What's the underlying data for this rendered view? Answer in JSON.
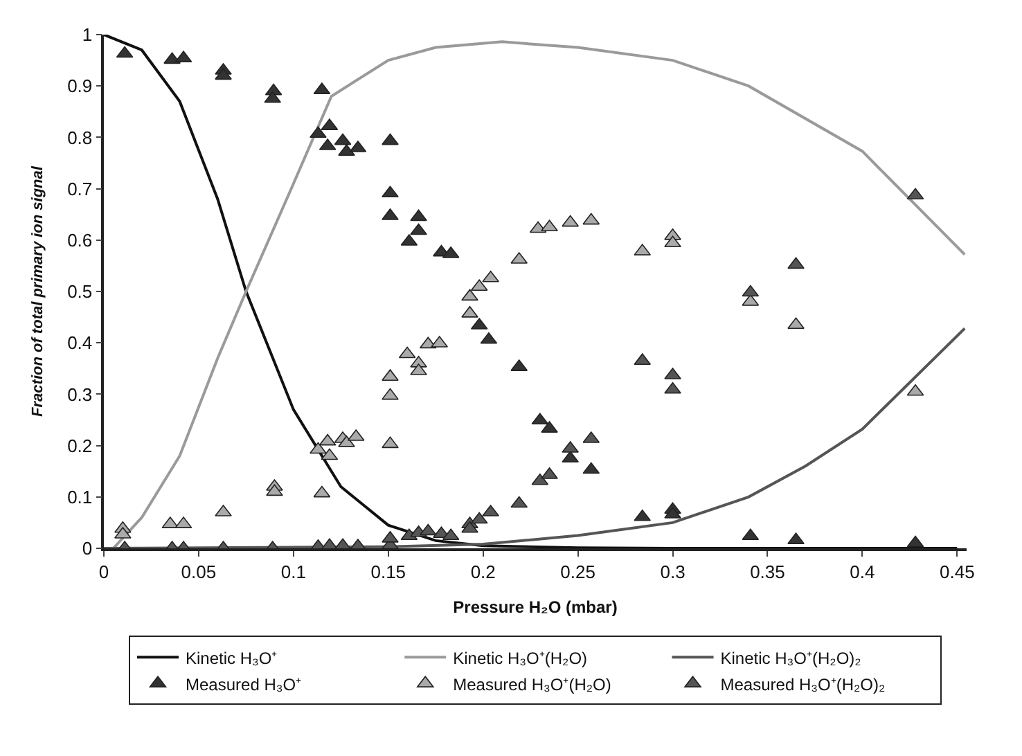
{
  "chart_data": {
    "type": "scatter",
    "xlabel": "Pressure H₂O (mbar)",
    "ylabel": "Fraction of total primary ion signal",
    "xlim": [
      0,
      0.455
    ],
    "ylim": [
      0,
      1
    ],
    "xticks": [
      0,
      0.05,
      0.1,
      0.15,
      0.2,
      0.25,
      0.3,
      0.35,
      0.4,
      0.45
    ],
    "yticks": [
      0,
      0.1,
      0.2,
      0.3,
      0.4,
      0.5,
      0.6,
      0.7,
      0.8,
      0.9,
      1
    ],
    "grid": false,
    "legend": "bottom",
    "series": [
      {
        "name": "Kinetic H₃O⁺",
        "type": "line",
        "marker": "none",
        "line_style": "solid",
        "color": "#111111",
        "x": [
          0,
          0.02,
          0.04,
          0.06,
          0.075,
          0.1,
          0.125,
          0.15,
          0.175,
          0.2,
          0.25,
          0.3,
          0.45
        ],
        "values": [
          1,
          0.97,
          0.87,
          0.68,
          0.5,
          0.27,
          0.12,
          0.045,
          0.015,
          0.005,
          0.001,
          0,
          0
        ]
      },
      {
        "name": "Kinetic H₃O⁺(H₂O)",
        "type": "line",
        "marker": "none",
        "line_style": "solid",
        "color": "#9a9a9a",
        "x": [
          0.005,
          0.02,
          0.04,
          0.06,
          0.075,
          0.1,
          0.12,
          0.15,
          0.175,
          0.21,
          0.25,
          0.3,
          0.34,
          0.4,
          0.454
        ],
        "values": [
          0,
          0.06,
          0.18,
          0.37,
          0.5,
          0.71,
          0.88,
          0.95,
          0.975,
          0.986,
          0.975,
          0.95,
          0.9,
          0.773,
          0.572
        ]
      },
      {
        "name": "Kinetic H₃O⁺(H₂O)₂",
        "type": "line",
        "marker": "none",
        "line_style": "solid",
        "color": "#555555",
        "x": [
          0,
          0.15,
          0.2,
          0.25,
          0.3,
          0.34,
          0.37,
          0.4,
          0.454
        ],
        "values": [
          0,
          0.003,
          0.008,
          0.025,
          0.05,
          0.1,
          0.16,
          0.232,
          0.428
        ]
      },
      {
        "name": "Measured H₃O⁺",
        "marker": "triangle",
        "color": "#333333",
        "x": [
          0.011,
          0.036,
          0.042,
          0.063,
          0.063,
          0.0895,
          0.089,
          0.115,
          0.113,
          0.119,
          0.118,
          0.126,
          0.128,
          0.134,
          0.151,
          0.151,
          0.151,
          0.166,
          0.166,
          0.161,
          0.178,
          0.183,
          0.198,
          0.203,
          0.219,
          0.23,
          0.235,
          0.246,
          0.257,
          0.284,
          0.3,
          0.3,
          0.341,
          0.365,
          0.428
        ],
        "values": [
          0.963,
          0.951,
          0.954,
          0.93,
          0.92,
          0.89,
          0.875,
          0.892,
          0.807,
          0.822,
          0.783,
          0.793,
          0.772,
          0.779,
          0.793,
          0.691,
          0.647,
          0.645,
          0.618,
          0.597,
          0.576,
          0.573,
          0.434,
          0.406,
          0.353,
          0.249,
          0.233,
          0.175,
          0.153,
          0.061,
          0.075,
          0.066,
          0.024,
          0.016,
          0.01
        ]
      },
      {
        "name": "Measured H₃O⁺(H₂O)",
        "marker": "triangle",
        "color": "#aaaaaa",
        "x": [
          0.01,
          0.01,
          0.035,
          0.042,
          0.063,
          0.09,
          0.09,
          0.115,
          0.113,
          0.119,
          0.118,
          0.126,
          0.128,
          0.133,
          0.151,
          0.151,
          0.151,
          0.16,
          0.166,
          0.166,
          0.171,
          0.177,
          0.193,
          0.193,
          0.198,
          0.204,
          0.219,
          0.229,
          0.235,
          0.246,
          0.257,
          0.284,
          0.3,
          0.3,
          0.341,
          0.365,
          0.428
        ],
        "values": [
          0.038,
          0.027,
          0.047,
          0.047,
          0.07,
          0.12,
          0.11,
          0.107,
          0.192,
          0.18,
          0.208,
          0.213,
          0.205,
          0.217,
          0.334,
          0.297,
          0.203,
          0.378,
          0.36,
          0.345,
          0.397,
          0.399,
          0.49,
          0.457,
          0.509,
          0.526,
          0.562,
          0.622,
          0.625,
          0.634,
          0.638,
          0.578,
          0.608,
          0.594,
          0.48,
          0.435,
          0.305
        ]
      },
      {
        "name": "Measured H₃O⁺(H₂O)₂",
        "marker": "triangle",
        "color": "#555555",
        "x": [
          0.011,
          0.036,
          0.042,
          0.063,
          0.089,
          0.113,
          0.119,
          0.126,
          0.134,
          0.151,
          0.151,
          0.161,
          0.166,
          0.171,
          0.178,
          0.183,
          0.193,
          0.193,
          0.198,
          0.204,
          0.219,
          0.23,
          0.235,
          0.246,
          0.257,
          0.284,
          0.3,
          0.3,
          0.341,
          0.365,
          0.428
        ],
        "values": [
          0,
          0,
          0,
          0,
          0,
          0.003,
          0.005,
          0.005,
          0.004,
          0.006,
          0.019,
          0.024,
          0.03,
          0.033,
          0.028,
          0.024,
          0.047,
          0.038,
          0.056,
          0.07,
          0.087,
          0.131,
          0.143,
          0.194,
          0.213,
          0.365,
          0.337,
          0.309,
          0.498,
          0.552,
          0.687
        ]
      }
    ]
  }
}
